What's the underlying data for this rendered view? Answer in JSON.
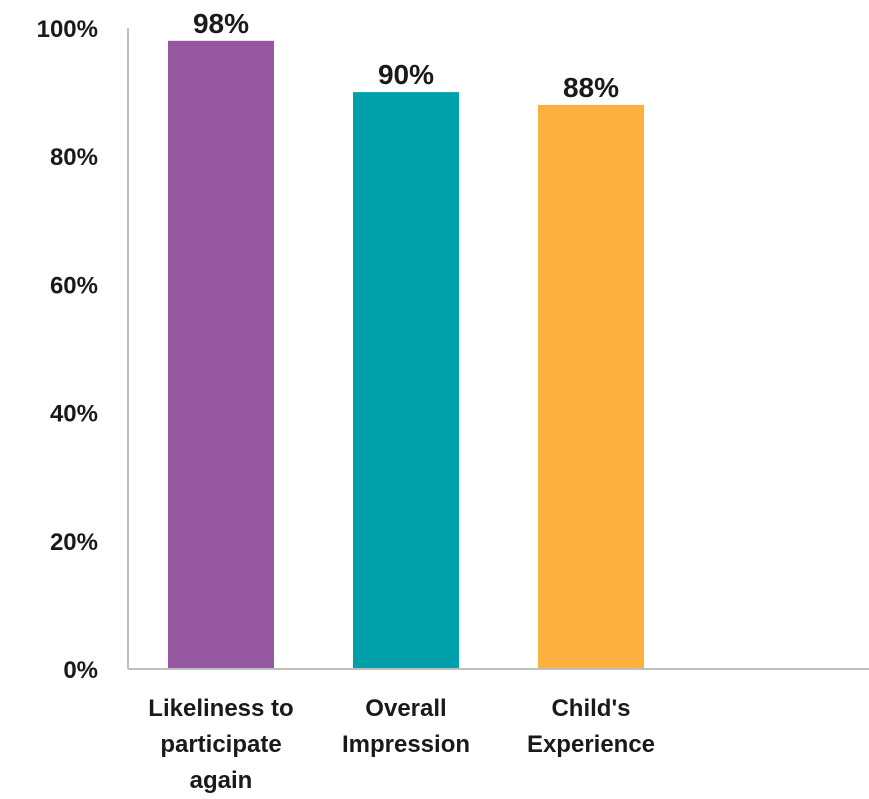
{
  "chart_data": {
    "type": "bar",
    "categories": [
      "Likeliness to participate again",
      "Overall Impression",
      "Child's Experience"
    ],
    "category_lines": [
      [
        "Likeliness to",
        "participate",
        "again"
      ],
      [
        "Overall",
        "Impression"
      ],
      [
        "Child's",
        "Experience"
      ]
    ],
    "values": [
      98,
      90,
      88
    ],
    "data_labels": [
      "98%",
      "90%",
      "88%"
    ],
    "colors": [
      "#9558a0",
      "#00a0ab",
      "#fbb040"
    ],
    "ylim": [
      0,
      100
    ],
    "yticks": [
      0,
      20,
      40,
      60,
      80,
      100
    ],
    "ytick_labels": [
      "0%",
      "20%",
      "40%",
      "60%",
      "80%",
      "100%"
    ],
    "title": "",
    "xlabel": "",
    "ylabel": "",
    "grid": false,
    "legend": false
  }
}
